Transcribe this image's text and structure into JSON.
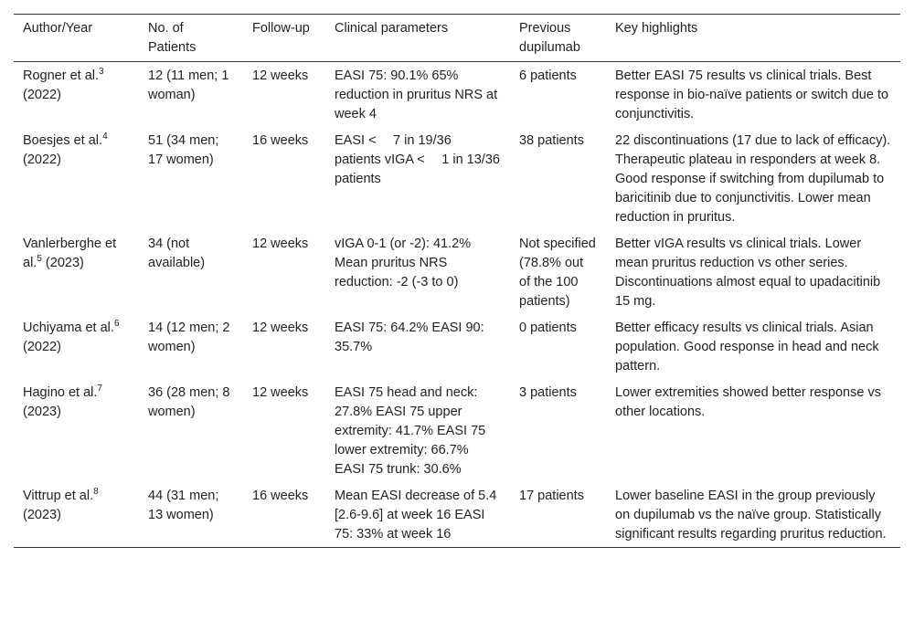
{
  "table": {
    "headers": [
      "Author/Year",
      "No. of Patients",
      "Follow-up",
      "Clinical parameters",
      "Previous dupilumab",
      "Key highlights"
    ],
    "rows": [
      {
        "author": "Rogner et al.",
        "ref": "3",
        "year": "(2022)",
        "patients": "12 (11 men; 1 woman)",
        "followup": "12 weeks",
        "parameters": "EASI 75: 90.1% 65% reduction in pruritus NRS at week 4",
        "previous": "6 patients",
        "highlights": "Better EASI 75 results vs clinical trials. Best response in bio-naïve patients or switch due to conjunctivitis."
      },
      {
        "author": "Boesjes et al.",
        "ref": "4",
        "year": "(2022)",
        "patients": "51 (34 men; 17 women)",
        "followup": "16 weeks",
        "parameters": "EASI <  7 in 19/36 patients vIGA <  1 in 13/36 patients",
        "previous": "38 patients",
        "highlights": "22 discontinuations (17 due to lack of efficacy). Therapeutic plateau in responders at week 8. Good response if switching from dupilumab to baricitinib due to conjunctivitis. Lower mean reduction in pruritus."
      },
      {
        "author": "Vanlerberghe et al.",
        "ref": "5",
        "year": "(2023)",
        "patients": "34 (not available)",
        "followup": "12 weeks",
        "parameters": "vIGA 0-1 (or -2): 41.2% Mean pruritus NRS reduction: -2 (-3 to 0)",
        "previous": "Not specified (78.8% out of the 100 patients)",
        "highlights": "Better vIGA results vs clinical trials. Lower mean pruritus reduction vs other series. Discontinuations almost equal to upadacitinib 15 mg."
      },
      {
        "author": "Uchiyama et al.",
        "ref": "6",
        "year": "(2022)",
        "patients": "14 (12 men; 2 women)",
        "followup": "12 weeks",
        "parameters": "EASI 75: 64.2% EASI 90: 35.7%",
        "previous": "0 patients",
        "highlights": "Better efficacy results vs clinical trials. Asian population. Good response in head and neck pattern."
      },
      {
        "author": "Hagino et al.",
        "ref": "7",
        "year": "(2023)",
        "patients": "36 (28 men; 8 women)",
        "followup": "12 weeks",
        "parameters": "EASI 75 head and neck: 27.8% EASI 75 upper extremity: 41.7% EASI 75 lower extremity: 66.7% EASI 75 trunk: 30.6%",
        "previous": "3 patients",
        "highlights": "Lower extremities showed better response vs other locations."
      },
      {
        "author": "Vittrup et al.",
        "ref": "8",
        "year": "(2023)",
        "patients": "44 (31 men; 13 women)",
        "followup": "16 weeks",
        "parameters": "Mean EASI decrease of 5.4 [2.6-9.6] at week 16 EASI 75: 33% at week 16",
        "previous": "17 patients",
        "highlights": "Lower baseline EASI in the group previously on dupilumab vs the naïve group. Statistically significant results regarding pruritus reduction."
      }
    ]
  }
}
